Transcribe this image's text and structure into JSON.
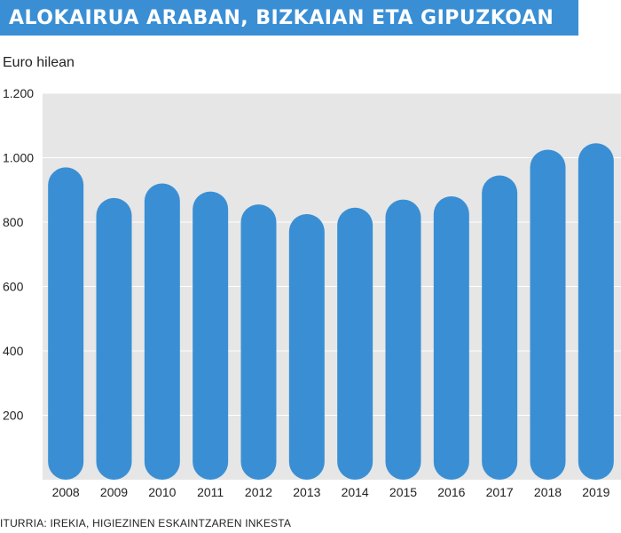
{
  "title": "ALOKAIRUA ARABAN, BIZKAIAN ETA GIPUZKOAN",
  "footer": "ITURRIA: IREKIA, HIGIEZINEN ESKAINTZAREN INKESTA",
  "colors": {
    "title_background": "#3a8fd4",
    "plot_background": "#e6e6e6",
    "bar": "#3a8fd4",
    "grid": "#ffffff"
  },
  "chart_data": {
    "type": "bar",
    "ylabel": "Euro hilean",
    "xlabel": "",
    "categories": [
      "2008",
      "2009",
      "2010",
      "2011",
      "2012",
      "2013",
      "2014",
      "2015",
      "2016",
      "2017",
      "2018",
      "2019"
    ],
    "values": [
      970,
      875,
      920,
      895,
      855,
      825,
      845,
      870,
      880,
      945,
      1025,
      1045
    ],
    "ylim": [
      0,
      1200
    ],
    "yticks": [
      200,
      400,
      600,
      800,
      1000,
      1200
    ],
    "ytick_labels": [
      "200",
      "400",
      "600",
      "800",
      "1.000",
      "1.200"
    ],
    "grid": true,
    "legend": false
  }
}
